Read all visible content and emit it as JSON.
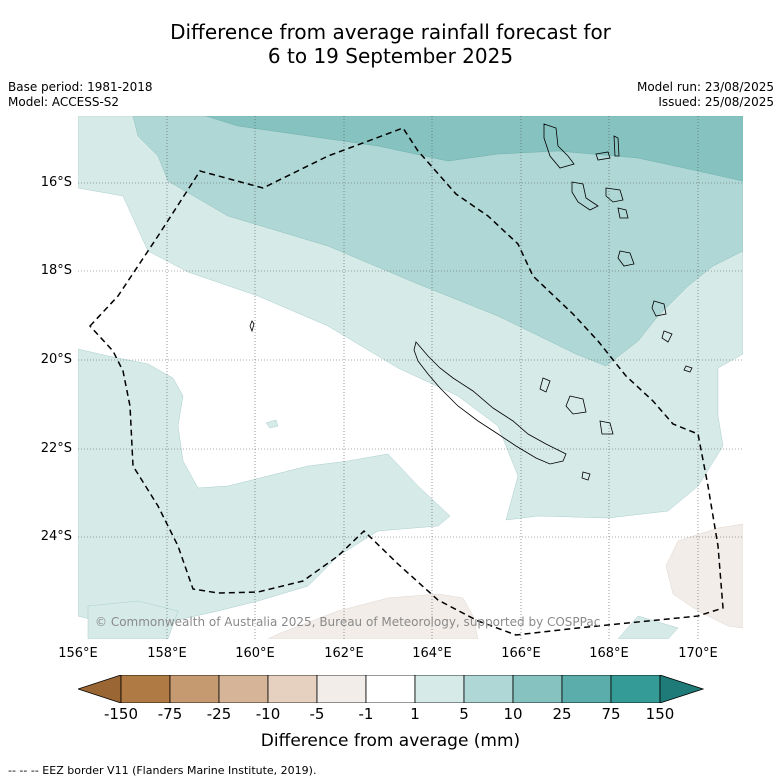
{
  "title": {
    "line1": "Difference from average rainfall forecast for",
    "line2": "6 to 19 September 2025"
  },
  "meta": {
    "base_period": "Base period: 1981-2018",
    "model": "Model: ACCESS-S2",
    "model_run": "Model run: 23/08/2025",
    "issued": "Issued: 25/08/2025"
  },
  "map": {
    "lon_labels": [
      "156°E",
      "158°E",
      "160°E",
      "162°E",
      "164°E",
      "166°E",
      "168°E",
      "170°E"
    ],
    "lat_labels": [
      "16°S",
      "18°S",
      "20°S",
      "22°S",
      "24°S"
    ],
    "copyright": "© Commonwealth of Australia 2025, Bureau of Meteorology, supported by COSPPac",
    "colors": {
      "wet_1_5": "#d6eae8",
      "wet_5_10": "#afd7d5",
      "wet_10_25": "#86c2bf",
      "neutral": "#ffffff",
      "dry_1_5": "#f2ede9",
      "eez_border": "#000000"
    }
  },
  "colorbar": {
    "labels": [
      "-150",
      "-75",
      "-25",
      "-10",
      "-5",
      "-1",
      "1",
      "5",
      "10",
      "25",
      "75",
      "150"
    ],
    "colors": [
      "#9a6634",
      "#b07a44",
      "#c69a70",
      "#d6b497",
      "#e6d0bf",
      "#f2ede9",
      "#ffffff",
      "#d6eae8",
      "#afd7d5",
      "#86c2bf",
      "#5aadab",
      "#359b97",
      "#1f7b77"
    ],
    "title": "Difference from average (mm)"
  },
  "footer": "--  --  -- EEZ border V11 (Flanders Marine Institute, 2019)."
}
